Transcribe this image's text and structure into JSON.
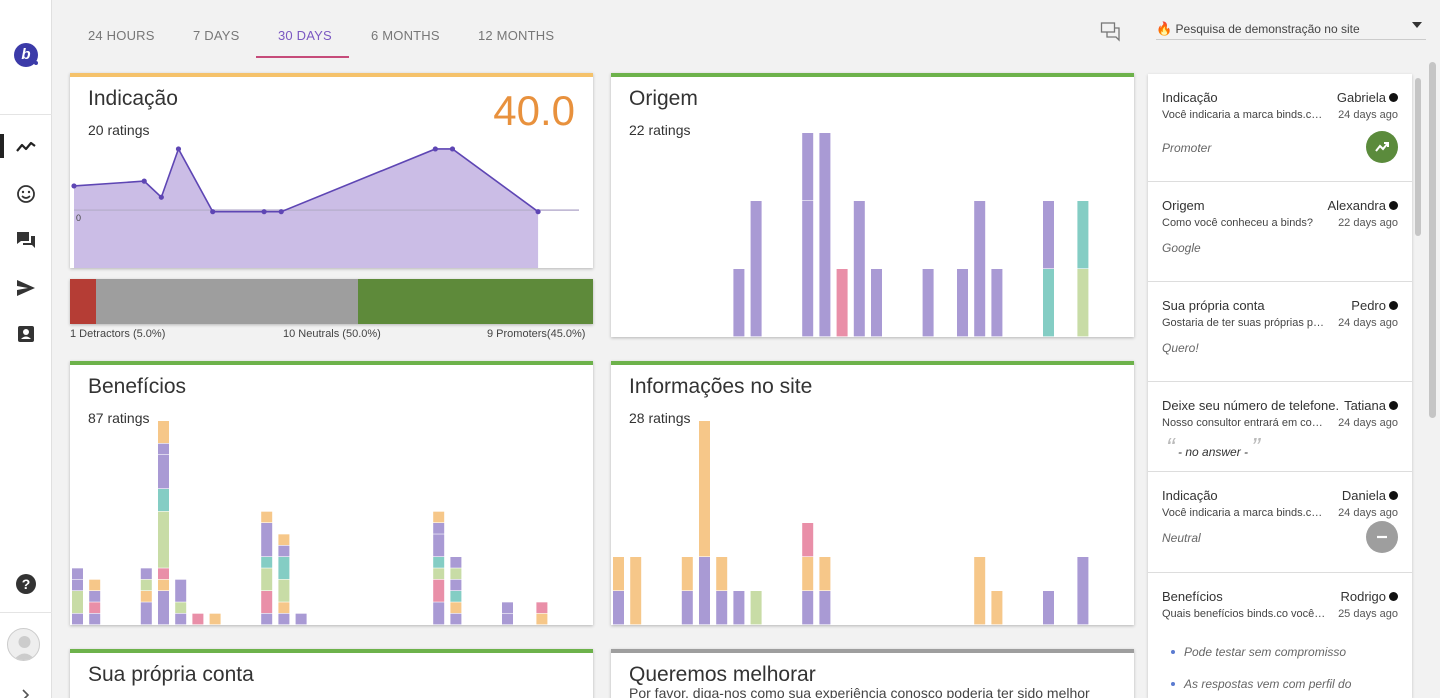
{
  "tabs": [
    {
      "label": "24 HOURS",
      "active": false
    },
    {
      "label": "7 DAYS",
      "active": false
    },
    {
      "label": "30 DAYS",
      "active": true
    },
    {
      "label": "6 MONTHS",
      "active": false
    },
    {
      "label": "12 MONTHS",
      "active": false
    }
  ],
  "survey_select": {
    "label": "Pesquisa de demonstração no site",
    "flame_icon": "🔥"
  },
  "colors": {
    "purple": "#a99ad4",
    "peach": "#f6c789",
    "green_pale": "#c8dca6",
    "teal": "#84cdc4",
    "pink": "#e98fa8",
    "lavender_fill": "#cbbde6",
    "line": "#5e46b4",
    "orange": "#e8913d",
    "bar_top_yellow": "#f5c26b",
    "bar_top_green": "#6db24b",
    "bar_top_gray": "#9e9e9e",
    "detractor": "#b53d35",
    "neutral": "#9e9e9e",
    "promoter": "#5e8a3a"
  },
  "cards": {
    "indicacao": {
      "title": "Indicação",
      "ratings": "20 ratings",
      "score": "40.0"
    },
    "origem": {
      "title": "Origem",
      "ratings": "22 ratings"
    },
    "beneficios": {
      "title": "Benefícios",
      "ratings": "87 ratings"
    },
    "informacoes": {
      "title": "Informações no site",
      "ratings": "28 ratings"
    },
    "conta": {
      "title": "Sua própria conta"
    },
    "melhorar": {
      "title": "Queremos melhorar",
      "subtitle": "Por favor, diga-nos como sua experiência conosco poderia ter sido melhor"
    }
  },
  "nps": {
    "detractors_label": "1 Detractors (5.0%)",
    "neutrals_label": "10 Neutrals (50.0%)",
    "promoters_label": "9 Promoters(45.0%)",
    "detractors_pct": 5.0,
    "neutrals_pct": 50.0,
    "promoters_pct": 45.0
  },
  "chart_data": [
    {
      "type": "area",
      "title": "Indicação",
      "tick_labels": [
        "0"
      ],
      "values": [
        1.5,
        1.8,
        0.8,
        3.8,
        -0.1,
        -0.1,
        -0.1,
        3.8,
        3.8,
        -0.1
      ],
      "x": [
        0,
        41,
        51,
        61,
        81,
        111,
        121,
        211,
        221,
        271
      ],
      "x_range": [
        0,
        277
      ],
      "y_range": [
        -3.6,
        5.6
      ]
    },
    {
      "type": "bar",
      "title": "Origem",
      "stacked": true,
      "groups": [
        {
          "x": 7,
          "segs": [
            [
              "purple",
              1
            ]
          ]
        },
        {
          "x": 8,
          "segs": [
            [
              "purple",
              2
            ]
          ]
        },
        {
          "x": 11,
          "segs": [
            [
              "purple",
              2
            ],
            [
              "purple",
              1
            ]
          ]
        },
        {
          "x": 12,
          "segs": [
            [
              "purple",
              3
            ]
          ]
        },
        {
          "x": 13,
          "segs": [
            [
              "pink",
              1
            ]
          ]
        },
        {
          "x": 14,
          "segs": [
            [
              "purple",
              2
            ]
          ]
        },
        {
          "x": 15,
          "segs": [
            [
              "purple",
              1
            ]
          ]
        },
        {
          "x": 18,
          "segs": [
            [
              "purple",
              1
            ]
          ]
        },
        {
          "x": 20,
          "segs": [
            [
              "purple",
              1
            ]
          ]
        },
        {
          "x": 21,
          "segs": [
            [
              "purple",
              2
            ]
          ]
        },
        {
          "x": 22,
          "segs": [
            [
              "purple",
              1
            ]
          ]
        },
        {
          "x": 25,
          "segs": [
            [
              "teal",
              1
            ],
            [
              "purple",
              1
            ]
          ]
        },
        {
          "x": 27,
          "segs": [
            [
              "green_pale",
              1
            ],
            [
              "teal",
              1
            ]
          ]
        }
      ],
      "y_max": 3
    },
    {
      "type": "bar",
      "title": "Benefícios",
      "stacked": true,
      "groups": [
        {
          "x": 0,
          "segs": [
            [
              "purple",
              1
            ],
            [
              "green_pale",
              2
            ],
            [
              "purple",
              1
            ],
            [
              "purple",
              1
            ]
          ]
        },
        {
          "x": 1,
          "segs": [
            [
              "purple",
              1
            ],
            [
              "pink",
              1
            ],
            [
              "purple",
              1
            ],
            [
              "peach",
              1
            ]
          ]
        },
        {
          "x": 4,
          "segs": [
            [
              "purple",
              2
            ],
            [
              "peach",
              1
            ],
            [
              "green_pale",
              1
            ],
            [
              "purple",
              1
            ]
          ]
        },
        {
          "x": 5,
          "segs": [
            [
              "purple",
              3
            ],
            [
              "peach",
              1
            ],
            [
              "pink",
              1
            ],
            [
              "green_pale",
              5
            ],
            [
              "teal",
              2
            ],
            [
              "purple",
              3
            ],
            [
              "purple",
              1
            ],
            [
              "peach",
              2
            ]
          ]
        },
        {
          "x": 6,
          "segs": [
            [
              "purple",
              1
            ],
            [
              "green_pale",
              1
            ],
            [
              "purple",
              2
            ]
          ]
        },
        {
          "x": 7,
          "segs": [
            [
              "pink",
              1
            ]
          ]
        },
        {
          "x": 8,
          "segs": [
            [
              "peach",
              1
            ]
          ]
        },
        {
          "x": 11,
          "segs": [
            [
              "purple",
              1
            ],
            [
              "pink",
              2
            ],
            [
              "green_pale",
              2
            ],
            [
              "teal",
              1
            ],
            [
              "purple",
              3
            ],
            [
              "peach",
              1
            ]
          ]
        },
        {
          "x": 12,
          "segs": [
            [
              "purple",
              1
            ],
            [
              "peach",
              1
            ],
            [
              "green_pale",
              2
            ],
            [
              "teal",
              2
            ],
            [
              "purple",
              1
            ],
            [
              "peach",
              1
            ]
          ]
        },
        {
          "x": 13,
          "segs": [
            [
              "purple",
              1
            ]
          ]
        },
        {
          "x": 21,
          "segs": [
            [
              "purple",
              2
            ],
            [
              "pink",
              2
            ],
            [
              "green_pale",
              1
            ],
            [
              "teal",
              1
            ],
            [
              "purple",
              2
            ],
            [
              "purple",
              1
            ],
            [
              "peach",
              1
            ]
          ]
        },
        {
          "x": 22,
          "segs": [
            [
              "purple",
              1
            ],
            [
              "peach",
              1
            ],
            [
              "teal",
              1
            ],
            [
              "purple",
              1
            ],
            [
              "green_pale",
              1
            ],
            [
              "purple",
              1
            ]
          ]
        },
        {
          "x": 25,
          "segs": [
            [
              "purple",
              1
            ],
            [
              "purple",
              1
            ]
          ]
        },
        {
          "x": 27,
          "segs": [
            [
              "peach",
              1
            ],
            [
              "pink",
              1
            ]
          ]
        }
      ],
      "y_max": 18
    },
    {
      "type": "bar",
      "title": "Informações no site",
      "stacked": true,
      "groups": [
        {
          "x": 0,
          "segs": [
            [
              "purple",
              3
            ],
            [
              "peach",
              3
            ]
          ]
        },
        {
          "x": 1,
          "segs": [
            [
              "peach",
              6
            ]
          ]
        },
        {
          "x": 4,
          "segs": [
            [
              "purple",
              3
            ],
            [
              "peach",
              3
            ]
          ]
        },
        {
          "x": 5,
          "segs": [
            [
              "purple",
              6
            ],
            [
              "peach",
              12
            ]
          ]
        },
        {
          "x": 6,
          "segs": [
            [
              "purple",
              3
            ],
            [
              "peach",
              3
            ]
          ]
        },
        {
          "x": 7,
          "segs": [
            [
              "purple",
              3
            ]
          ]
        },
        {
          "x": 8,
          "segs": [
            [
              "green_pale",
              3
            ]
          ]
        },
        {
          "x": 11,
          "segs": [
            [
              "purple",
              3
            ],
            [
              "peach",
              3
            ],
            [
              "pink",
              3
            ]
          ]
        },
        {
          "x": 12,
          "segs": [
            [
              "purple",
              3
            ],
            [
              "peach",
              3
            ]
          ]
        },
        {
          "x": 21,
          "segs": [
            [
              "peach",
              6
            ]
          ]
        },
        {
          "x": 22,
          "segs": [
            [
              "peach",
              3
            ]
          ]
        },
        {
          "x": 25,
          "segs": [
            [
              "purple",
              3
            ]
          ]
        },
        {
          "x": 27,
          "segs": [
            [
              "purple",
              6
            ]
          ]
        }
      ],
      "y_max": 18
    }
  ],
  "feed": [
    {
      "question": "Indicação",
      "name": "Gabriela",
      "text": "Você indicaria a marca binds.co para um amigo?",
      "time": "24 days ago",
      "answer": "Promoter",
      "badge": "promoter"
    },
    {
      "question": "Origem",
      "name": "Alexandra",
      "text": "Como você conheceu a binds?",
      "time": "22 days ago",
      "answer": "Google"
    },
    {
      "question": "Sua própria conta",
      "name": "Pedro",
      "text": "Gostaria de ter suas próprias pesquisas?",
      "time": "24 days ago",
      "answer": "Quero!"
    },
    {
      "question": "Deixe seu número de telefone.",
      "name": "Tatiana",
      "text": "Nosso consultor entrará em contato com você",
      "time": "24 days ago",
      "answer": "- no answer -",
      "quoted": true
    },
    {
      "question": "Indicação",
      "name": "Daniela",
      "text": "Você indicaria a marca binds.co para um amigo?",
      "time": "24 days ago",
      "answer": "Neutral",
      "badge": "neutral"
    },
    {
      "question": "Benefícios",
      "name": "Rodrigo",
      "text": "Quais benefícios binds.co você já conhece?",
      "time": "25 days ago",
      "bullets": [
        "Pode testar sem compromisso",
        "As respostas vem com perfil do"
      ]
    }
  ]
}
